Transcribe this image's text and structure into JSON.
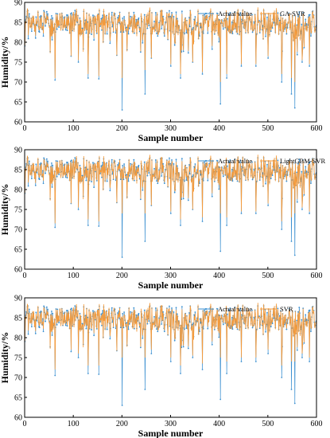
{
  "colors": {
    "actual": "#3a8fd0",
    "predicted": "#f59a3a",
    "axis": "#000000"
  },
  "chart_data": [
    {
      "type": "line",
      "xlabel": "Sample number",
      "ylabel": "Humidity/%",
      "xlim": [
        0,
        600
      ],
      "ylim": [
        60,
        90
      ],
      "xticks": [
        0,
        100,
        200,
        300,
        400,
        500,
        600
      ],
      "yticks": [
        60,
        65,
        70,
        75,
        80,
        85,
        90
      ],
      "legend": "top-right",
      "series": [
        {
          "name": "Actual value",
          "markers": true,
          "dips": [
            [
              62,
              70.5
            ],
            [
              95,
              76.5
            ],
            [
              110,
              75
            ],
            [
              130,
              71
            ],
            [
              152,
              70.8
            ],
            [
              200,
              63
            ],
            [
              247,
              67
            ],
            [
              260,
              76
            ],
            [
              300,
              74
            ],
            [
              320,
              71
            ],
            [
              345,
              75
            ],
            [
              365,
              72
            ],
            [
              402,
              64.5
            ],
            [
              415,
              71
            ],
            [
              445,
              74
            ],
            [
              475,
              74
            ],
            [
              500,
              76
            ],
            [
              528,
              70
            ],
            [
              548,
              67
            ],
            [
              555,
              63.5
            ],
            [
              570,
              75
            ],
            [
              585,
              74
            ]
          ]
        },
        {
          "name": "GA-SVR",
          "markers": false,
          "dips": [
            [
              62,
              71
            ],
            [
              95,
              76.5
            ],
            [
              110,
              75.5
            ],
            [
              130,
              72
            ],
            [
              152,
              71.5
            ],
            [
              200,
              71
            ],
            [
              247,
              73
            ],
            [
              260,
              76
            ],
            [
              300,
              74.5
            ],
            [
              320,
              72
            ],
            [
              345,
              75
            ],
            [
              365,
              72.5
            ],
            [
              402,
              70
            ],
            [
              415,
              72
            ],
            [
              445,
              74.5
            ],
            [
              475,
              74.5
            ],
            [
              500,
              76.5
            ],
            [
              528,
              72
            ],
            [
              548,
              71
            ],
            [
              555,
              70
            ],
            [
              570,
              75.5
            ],
            [
              585,
              74.5
            ]
          ]
        }
      ]
    },
    {
      "type": "line",
      "xlabel": "Sample number",
      "ylabel": "Humidity/%",
      "xlim": [
        0,
        600
      ],
      "ylim": [
        60,
        90
      ],
      "xticks": [
        0,
        100,
        200,
        300,
        400,
        500,
        600
      ],
      "yticks": [
        60,
        65,
        70,
        75,
        80,
        85,
        90
      ],
      "legend": "top-right",
      "series": [
        {
          "name": "Actual value",
          "markers": true,
          "dips": [
            [
              62,
              70.5
            ],
            [
              95,
              76.5
            ],
            [
              110,
              75
            ],
            [
              130,
              71
            ],
            [
              152,
              70.8
            ],
            [
              200,
              63
            ],
            [
              247,
              67
            ],
            [
              260,
              76
            ],
            [
              300,
              74
            ],
            [
              320,
              71
            ],
            [
              345,
              75
            ],
            [
              365,
              72
            ],
            [
              402,
              64.5
            ],
            [
              415,
              71
            ],
            [
              445,
              74
            ],
            [
              475,
              74
            ],
            [
              500,
              76
            ],
            [
              528,
              70
            ],
            [
              548,
              67
            ],
            [
              555,
              63.5
            ],
            [
              570,
              75
            ],
            [
              585,
              74
            ]
          ]
        },
        {
          "name": "LightGBM-SVR",
          "markers": false,
          "dips": [
            [
              62,
              71.5
            ],
            [
              95,
              76.5
            ],
            [
              110,
              75.5
            ],
            [
              130,
              72.5
            ],
            [
              152,
              72
            ],
            [
              200,
              74
            ],
            [
              247,
              74
            ],
            [
              260,
              76
            ],
            [
              300,
              74.5
            ],
            [
              320,
              72.5
            ],
            [
              345,
              75
            ],
            [
              365,
              73
            ],
            [
              402,
              74
            ],
            [
              415,
              73
            ],
            [
              445,
              74.5
            ],
            [
              475,
              74.5
            ],
            [
              500,
              76.5
            ],
            [
              528,
              72
            ],
            [
              548,
              73
            ],
            [
              555,
              74
            ],
            [
              570,
              75.5
            ],
            [
              585,
              74.5
            ]
          ]
        }
      ]
    },
    {
      "type": "line",
      "xlabel": "Sample number",
      "ylabel": "Humidity/%",
      "xlim": [
        0,
        600
      ],
      "ylim": [
        60,
        90
      ],
      "xticks": [
        0,
        100,
        200,
        300,
        400,
        500,
        600
      ],
      "yticks": [
        60,
        65,
        70,
        75,
        80,
        85,
        90
      ],
      "legend": "top-right",
      "series": [
        {
          "name": "Actual value",
          "markers": true,
          "dips": [
            [
              62,
              70.5
            ],
            [
              95,
              76.5
            ],
            [
              110,
              75
            ],
            [
              130,
              71
            ],
            [
              152,
              70.8
            ],
            [
              200,
              63
            ],
            [
              247,
              67
            ],
            [
              260,
              76
            ],
            [
              300,
              74
            ],
            [
              320,
              71
            ],
            [
              345,
              75
            ],
            [
              365,
              72
            ],
            [
              402,
              64.5
            ],
            [
              415,
              71
            ],
            [
              445,
              74
            ],
            [
              475,
              74
            ],
            [
              500,
              76
            ],
            [
              528,
              70
            ],
            [
              548,
              67
            ],
            [
              555,
              63.5
            ],
            [
              570,
              75
            ],
            [
              585,
              74
            ]
          ]
        },
        {
          "name": "SVR",
          "markers": false,
          "dips": [
            [
              62,
              72
            ],
            [
              95,
              77
            ],
            [
              110,
              76
            ],
            [
              130,
              73
            ],
            [
              152,
              73
            ],
            [
              200,
              75
            ],
            [
              247,
              75
            ],
            [
              260,
              77
            ],
            [
              300,
              75
            ],
            [
              320,
              73
            ],
            [
              345,
              75.5
            ],
            [
              365,
              73.5
            ],
            [
              402,
              75
            ],
            [
              415,
              74
            ],
            [
              445,
              75
            ],
            [
              475,
              75
            ],
            [
              500,
              77
            ],
            [
              528,
              73
            ],
            [
              548,
              74
            ],
            [
              555,
              74
            ],
            [
              570,
              76
            ],
            [
              585,
              75
            ]
          ]
        }
      ]
    }
  ]
}
